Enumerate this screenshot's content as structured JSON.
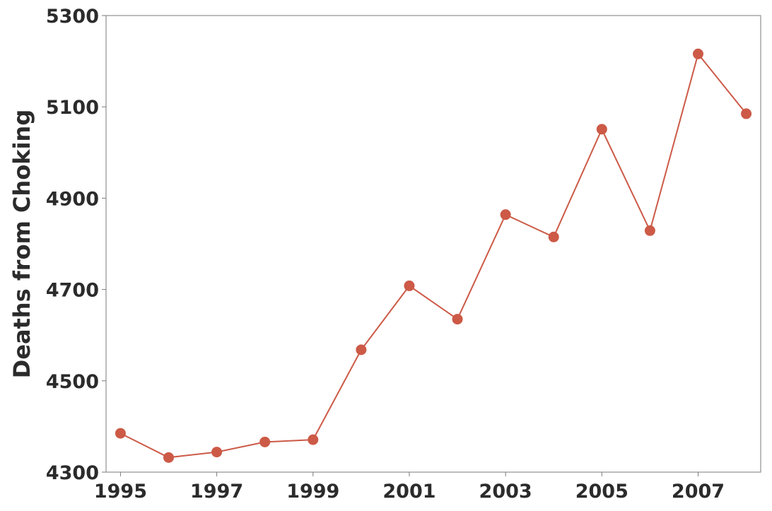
{
  "chart_data": {
    "type": "line",
    "title": "",
    "xlabel": "",
    "ylabel": "Deaths from Choking",
    "x": [
      1995,
      1996,
      1997,
      1998,
      1999,
      2000,
      2001,
      2002,
      2003,
      2004,
      2005,
      2006,
      2007,
      2008
    ],
    "series": [
      {
        "name": "",
        "color": "#cc5a47",
        "values": [
          4385,
          4332,
          4344,
          4366,
          4371,
          4568,
          4708,
          4635,
          4864,
          4815,
          5051,
          4829,
          5216,
          5085
        ]
      }
    ],
    "xlim": [
      1994.7,
      2008.3
    ],
    "ylim": [
      4300,
      5300
    ],
    "xticks": [
      1995,
      1997,
      1999,
      2001,
      2003,
      2005,
      2007
    ],
    "xtick_labels": [
      "1995",
      "1997",
      "1999",
      "2001",
      "2003",
      "2005",
      "2007"
    ],
    "yticks": [
      4300,
      4500,
      4700,
      4900,
      5100,
      5300
    ],
    "ytick_labels": [
      "4300",
      "4500",
      "4700",
      "4900",
      "5100",
      "5300"
    ],
    "grid": false,
    "legend": "none"
  }
}
